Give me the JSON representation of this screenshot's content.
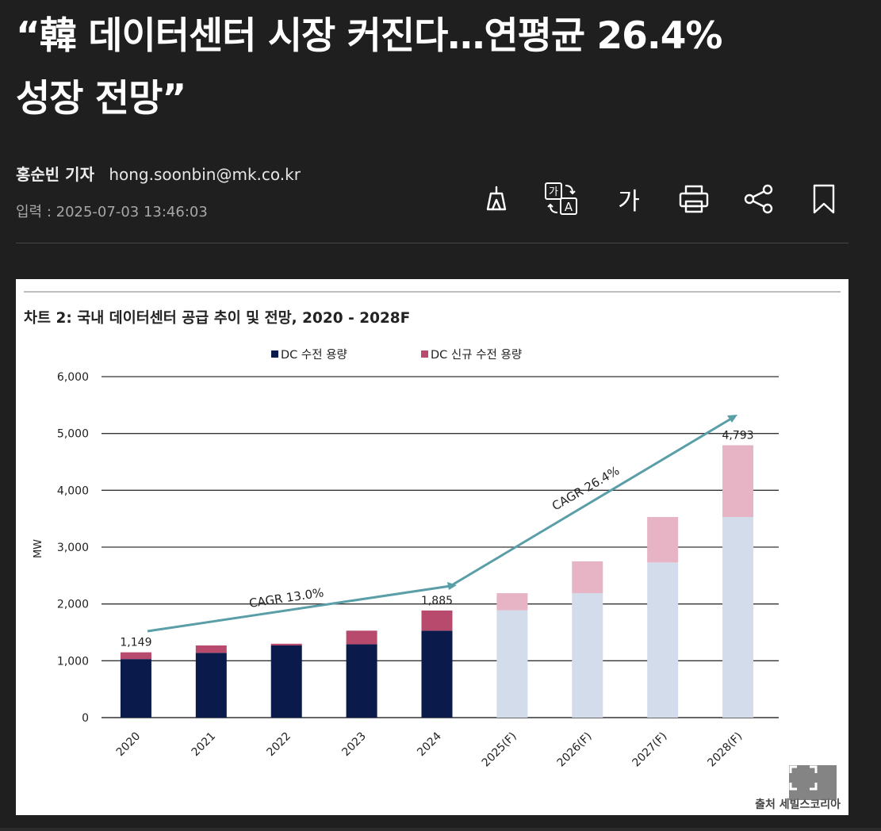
{
  "article": {
    "headline_line1": "“韓 데이터센터 시장 커진다…연평균 26.4%",
    "headline_line2": "성장 전망”",
    "reporter": "홍순빈 기자",
    "email": "hong.soonbin@mk.co.kr",
    "input_label": "입력 : 2025-07-03 13:46:03"
  },
  "toolbar": {
    "font_size_label": "가",
    "icons": [
      "highlighter-icon",
      "translate-icon",
      "font-size-icon",
      "print-icon",
      "share-icon",
      "bookmark-icon"
    ]
  },
  "figure": {
    "source": "출처 세빌스코리아",
    "expand_icon": "expand-icon"
  },
  "chart_data": {
    "type": "bar",
    "stacked": true,
    "title": "차트 2: 국내 데이터센터 공급 추이 및 전망, 2020 - 2028F",
    "ylabel": "MW",
    "xlabel": "",
    "ylim": [
      0,
      6000
    ],
    "yticks": [
      "0",
      "1,000",
      "2,000",
      "3,000",
      "4,000",
      "5,000",
      "6,000"
    ],
    "categories": [
      "2020",
      "2021",
      "2022",
      "2023",
      "2024",
      "2025(F)",
      "2026(F)",
      "2027(F)",
      "2028(F)"
    ],
    "forecast_from_index": 5,
    "series": [
      {
        "name": "DC 수전 용량",
        "values": [
          1030,
          1140,
          1270,
          1290,
          1530,
          1890,
          2190,
          2730,
          3530
        ]
      },
      {
        "name": "DC 신규 수전 용량",
        "values": [
          119,
          130,
          30,
          240,
          355,
          300,
          560,
          800,
          1263
        ]
      }
    ],
    "colors": {
      "existing": "#0a1a4a",
      "new": "#b84a6e",
      "existing_forecast": "#d3dcea",
      "new_forecast": "#e6b4c5",
      "arrow": "#5a9ea8"
    },
    "data_labels": [
      {
        "index": 0,
        "text": "1,149"
      },
      {
        "index": 4,
        "text": "1,885"
      },
      {
        "index": 8,
        "text": "4,793"
      }
    ],
    "annotations": [
      "CAGR 13.0%",
      "CAGR 26.4%"
    ],
    "legend_position": "top",
    "grid": true
  }
}
